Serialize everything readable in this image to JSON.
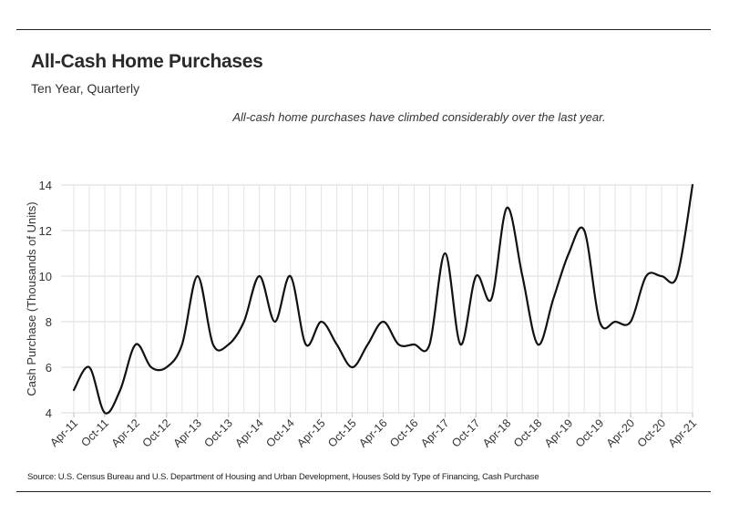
{
  "header": {
    "title": "All-Cash Home Purchases",
    "subtitle": "Ten Year, Quarterly",
    "annotation": "All-cash home purchases have climbed considerably over the last year."
  },
  "footer": {
    "source": "Source:  U.S. Census Bureau and U.S. Department of Housing and Urban Development, Houses Sold by Type of Financing, Cash Purchase"
  },
  "chart_data": {
    "type": "line",
    "ylabel": "Cash Purchase (Thousands of Units)",
    "xlabel": "",
    "ylim": [
      4,
      14
    ],
    "yticks": [
      4,
      6,
      8,
      10,
      12,
      14
    ],
    "grid": true,
    "line_color": "#111111",
    "x_tick_labels": [
      "Apr-11",
      "Oct-11",
      "Apr-12",
      "Oct-12",
      "Apr-13",
      "Oct-13",
      "Apr-14",
      "Oct-14",
      "Apr-15",
      "Oct-15",
      "Apr-16",
      "Oct-16",
      "Apr-17",
      "Oct-17",
      "Apr-18",
      "Oct-18",
      "Apr-19",
      "Oct-19",
      "Apr-20",
      "Oct-20",
      "Apr-21"
    ],
    "x": [
      "Apr-11",
      "Jul-11",
      "Oct-11",
      "Jan-12",
      "Apr-12",
      "Jul-12",
      "Oct-12",
      "Jan-13",
      "Apr-13",
      "Jul-13",
      "Oct-13",
      "Jan-14",
      "Apr-14",
      "Jul-14",
      "Oct-14",
      "Jan-15",
      "Apr-15",
      "Jul-15",
      "Oct-15",
      "Jan-16",
      "Apr-16",
      "Jul-16",
      "Oct-16",
      "Jan-17",
      "Apr-17",
      "Jul-17",
      "Oct-17",
      "Jan-18",
      "Apr-18",
      "Jul-18",
      "Oct-18",
      "Jan-19",
      "Apr-19",
      "Jul-19",
      "Oct-19",
      "Jan-20",
      "Apr-20",
      "Jul-20",
      "Oct-20",
      "Jan-21",
      "Apr-21"
    ],
    "series": [
      {
        "values": [
          5,
          6,
          4,
          5,
          7,
          6,
          6,
          7,
          10,
          7,
          7,
          8,
          10,
          8,
          10,
          7,
          8,
          7,
          6,
          7,
          8,
          7,
          7,
          7,
          11,
          7,
          10,
          9,
          13,
          10,
          7,
          9,
          11,
          12,
          8,
          8,
          8,
          10,
          10,
          10,
          14
        ]
      }
    ]
  }
}
